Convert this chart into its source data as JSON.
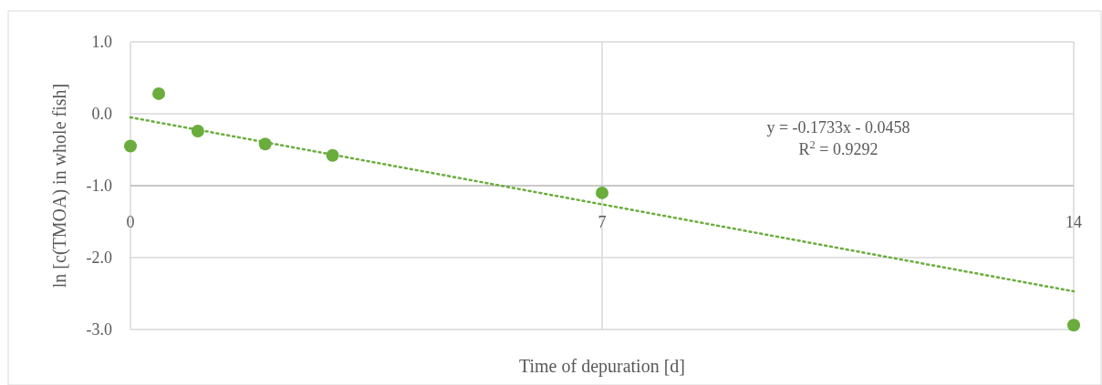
{
  "chart_data": {
    "type": "scatter",
    "xlabel": "Time of depuration [d]",
    "ylabel": "ln [c(TMOA) in whole fish]",
    "x": [
      0,
      0.42,
      1,
      2,
      3,
      7,
      14
    ],
    "series": [
      {
        "color": "#6aad3d",
        "values": [
          -0.45,
          0.28,
          -0.24,
          -0.42,
          -0.58,
          -1.1,
          -2.94
        ],
        "marker": "circle"
      },
      {
        "type": "line",
        "color": "#6aad3d",
        "x": [
          0,
          14
        ],
        "values": [
          -0.05,
          -2.47
        ],
        "line_style": "dotted",
        "marker": "none"
      }
    ],
    "xlim": [
      0,
      14
    ],
    "xticks": [
      0,
      7,
      14
    ],
    "ylim": [
      -3,
      1
    ],
    "yticks": [
      {
        "value": -3,
        "label": "-3.0"
      },
      {
        "value": -2,
        "label": "-2.0"
      },
      {
        "value": -1,
        "label": "-1.0"
      },
      {
        "value": 0,
        "label": "0.0"
      },
      {
        "value": 1,
        "label": "1.0"
      }
    ],
    "grid": true,
    "annotations": [
      "y = -0.1733x - 0.0458",
      "R$^{2}$ = 0.9292"
    ]
  }
}
